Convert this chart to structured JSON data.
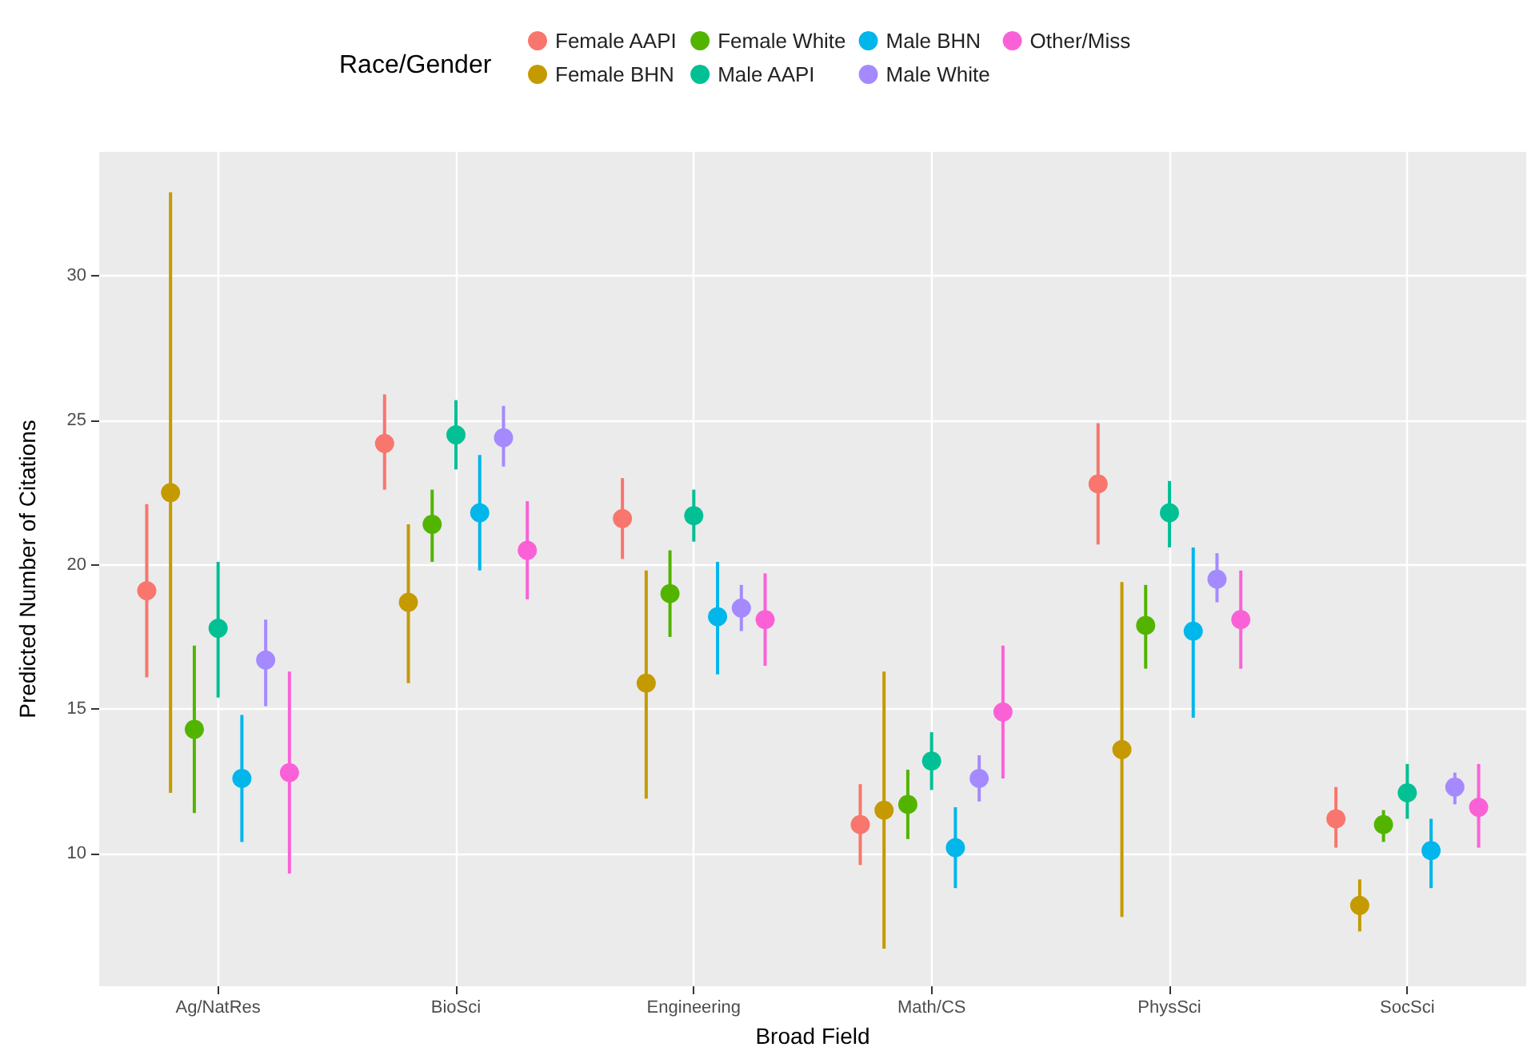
{
  "chart_data": {
    "type": "scatter",
    "xlabel": "Broad Field",
    "ylabel": "Predicted Number of Citations",
    "legend_title": "Race/Gender",
    "categories": [
      "Ag/NatRes",
      "BioSci",
      "Engineering",
      "Math/CS",
      "PhysSci",
      "SocSci"
    ],
    "series": [
      {
        "name": "Female AAPI",
        "color": "#f8766d",
        "values": [
          19.1,
          24.2,
          21.6,
          11.0,
          22.8,
          11.2
        ],
        "errors": [
          [
            16.1,
            22.1
          ],
          [
            22.6,
            25.9
          ],
          [
            20.2,
            23.0
          ],
          [
            9.6,
            12.4
          ],
          [
            20.7,
            24.9
          ],
          [
            10.2,
            12.3
          ]
        ]
      },
      {
        "name": "Female BHN",
        "color": "#c49a00",
        "values": [
          22.5,
          18.7,
          15.9,
          11.5,
          13.6,
          8.2
        ],
        "errors": [
          [
            12.1,
            32.9
          ],
          [
            15.9,
            21.4
          ],
          [
            11.9,
            19.8
          ],
          [
            6.7,
            16.3
          ],
          [
            7.8,
            19.4
          ],
          [
            7.3,
            9.1
          ]
        ]
      },
      {
        "name": "Female White",
        "color": "#53b400",
        "values": [
          14.3,
          21.4,
          19.0,
          11.7,
          17.9,
          11.0
        ],
        "errors": [
          [
            11.4,
            17.2
          ],
          [
            20.1,
            22.6
          ],
          [
            17.5,
            20.5
          ],
          [
            10.5,
            12.9
          ],
          [
            16.4,
            19.3
          ],
          [
            10.4,
            11.5
          ]
        ]
      },
      {
        "name": "Male AAPI",
        "color": "#00c094",
        "values": [
          17.8,
          24.5,
          21.7,
          13.2,
          21.8,
          12.1
        ],
        "errors": [
          [
            15.4,
            20.1
          ],
          [
            23.3,
            25.7
          ],
          [
            20.8,
            22.6
          ],
          [
            12.2,
            14.2
          ],
          [
            20.6,
            22.9
          ],
          [
            11.2,
            13.1
          ]
        ]
      },
      {
        "name": "Male BHN",
        "color": "#00b6eb",
        "values": [
          12.6,
          21.8,
          18.2,
          10.2,
          17.7,
          10.1
        ],
        "errors": [
          [
            10.4,
            14.8
          ],
          [
            19.8,
            23.8
          ],
          [
            16.2,
            20.1
          ],
          [
            8.8,
            11.6
          ],
          [
            14.7,
            20.6
          ],
          [
            8.8,
            11.2
          ]
        ]
      },
      {
        "name": "Male White",
        "color": "#a58aff",
        "values": [
          16.7,
          24.4,
          18.5,
          12.6,
          19.5,
          12.3
        ],
        "errors": [
          [
            15.1,
            18.1
          ],
          [
            23.4,
            25.5
          ],
          [
            17.7,
            19.3
          ],
          [
            11.8,
            13.4
          ],
          [
            18.7,
            20.4
          ],
          [
            11.7,
            12.8
          ]
        ]
      },
      {
        "name": "Other/Miss",
        "color": "#fb61d7",
        "values": [
          12.8,
          20.5,
          18.1,
          14.9,
          18.1,
          11.6
        ],
        "errors": [
          [
            9.3,
            16.3
          ],
          [
            18.8,
            22.2
          ],
          [
            16.5,
            19.7
          ],
          [
            12.6,
            17.2
          ],
          [
            16.4,
            19.8
          ],
          [
            10.2,
            13.1
          ]
        ]
      }
    ],
    "ylim": [
      5.4,
      34.3
    ],
    "yticks": [
      10,
      15,
      20,
      25,
      30
    ],
    "grid": true,
    "legend": "top",
    "marker": "circle"
  }
}
